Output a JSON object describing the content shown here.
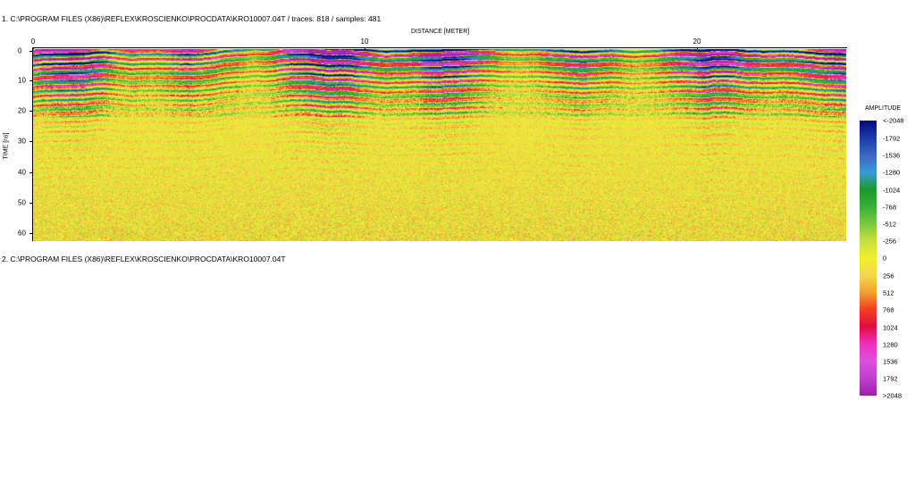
{
  "profile1_header": "1. C:\\PROGRAM FILES (X86)\\REFLEX\\KROSCIENKO\\PROCDATA\\KRO10007.04T / traces: 818 / samples: 481",
  "profile2_header": "2. C:\\PROGRAM FILES (X86)\\REFLEX\\KROSCIENKO\\PROCDATA\\KRO10007.04T",
  "x_axis": {
    "title": "DISTANCE [METER]",
    "ticks": [
      "0",
      "10",
      "20"
    ],
    "range": [
      0,
      24.5
    ]
  },
  "y_axis": {
    "title": "TIME [ns]",
    "ticks": [
      "0",
      "10",
      "20",
      "30",
      "40",
      "50",
      "60"
    ],
    "range": [
      0,
      63
    ]
  },
  "legend": {
    "title": "AMPLITUDE",
    "labels": [
      "<-2048",
      "-1792",
      "-1536",
      "-1280",
      "-1024",
      "-768",
      "-512",
      "-256",
      "0",
      "256",
      "512",
      "768",
      "1024",
      "1280",
      "1536",
      "1792",
      ">2048"
    ],
    "colors": [
      "#0a0a80",
      "#1c3cb0",
      "#3a68c8",
      "#3a9ad8",
      "#1a9a2a",
      "#3ab03a",
      "#7acc3a",
      "#c8e040",
      "#f0f030",
      "#f4d850",
      "#f4a030",
      "#f04020",
      "#e01040",
      "#f030c0",
      "#e050e0",
      "#c040d0",
      "#a020b0"
    ]
  },
  "chart_data": {
    "type": "heatmap",
    "title": "",
    "xlabel": "DISTANCE [METER]",
    "ylabel": "TIME [ns]",
    "xlim": [
      0,
      24.5
    ],
    "ylim": [
      0,
      63
    ],
    "traces": 818,
    "samples": 481,
    "color_scale_label": "AMPLITUDE",
    "color_scale_range": [
      -2048,
      2048
    ]
  }
}
